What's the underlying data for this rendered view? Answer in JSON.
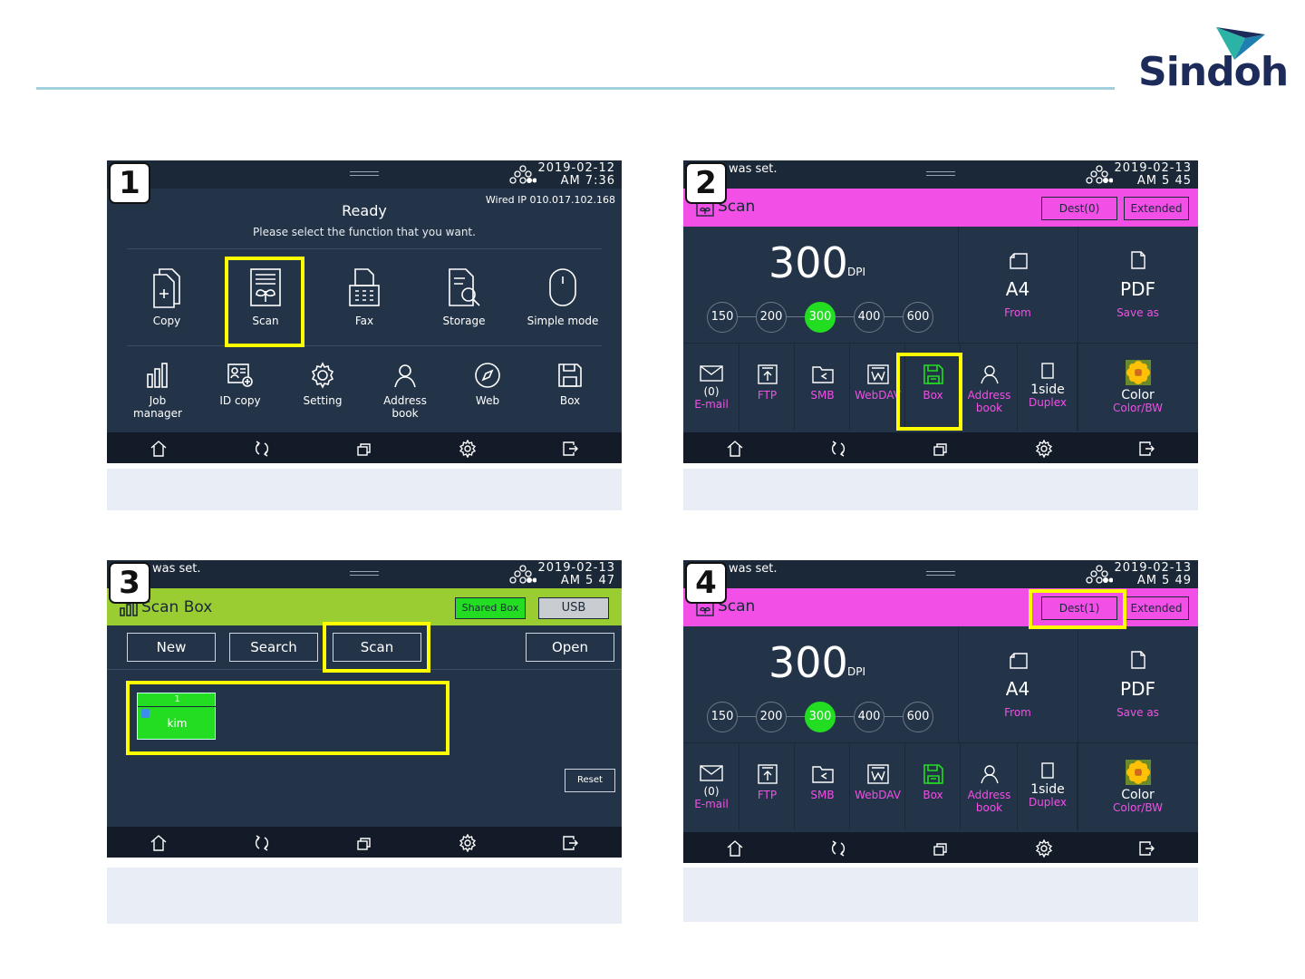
{
  "brand": {
    "name": "Sindoh",
    "text_color": "#1d2b5a"
  },
  "screen1": {
    "badge": "1",
    "date": "2019-02-12",
    "time": "AM 7:36",
    "wired_ip": "Wired IP 010.017.102.168",
    "status": "Ready",
    "instruction": "Please select the function that you want.",
    "functions_row1": [
      "Copy",
      "Scan",
      "Fax",
      "Storage",
      "Simple mode"
    ],
    "functions_row2": [
      "Job\nmanager",
      "ID copy",
      "Setting",
      "Address\nbook",
      "Web",
      "Box"
    ]
  },
  "screen2": {
    "badge": "2",
    "message": "was set.",
    "date": "2019-02-13",
    "time": "AM 5  45",
    "title": "Scan",
    "dest_button": "Dest(0)",
    "extended_button": "Extended",
    "dpi_value": "300",
    "dpi_unit": "DPI",
    "dpi_options": [
      "150",
      "200",
      "300",
      "400",
      "600"
    ],
    "dpi_selected": "300",
    "size": {
      "value": "A4",
      "label": "From"
    },
    "format": {
      "value": "PDF",
      "label": "Save as"
    },
    "email": {
      "count": "(0)",
      "label": "E-mail"
    },
    "destinations": [
      "FTP",
      "SMB",
      "WebDAV",
      "Box"
    ],
    "address_book": "Address\nbook",
    "side": {
      "value": "1side",
      "label": "Duplex"
    },
    "color": {
      "value": "Color",
      "label": "Color/BW"
    }
  },
  "screen3": {
    "badge": "3",
    "message": "was set.",
    "date": "2019-02-13",
    "time": "AM 5  47",
    "title": "Scan Box",
    "shared_box_button": "Shared Box",
    "usb_button": "USB",
    "actions": [
      "New",
      "Search",
      "Scan",
      "Open"
    ],
    "box_number": "1",
    "box_name": "kim",
    "reset_button": "Reset"
  },
  "screen4": {
    "badge": "4",
    "message": "was set.",
    "date": "2019-02-13",
    "time": "AM 5  49",
    "title": "Scan",
    "dest_button": "Dest(1)",
    "extended_button": "Extended",
    "dpi_value": "300",
    "dpi_unit": "DPI",
    "dpi_options": [
      "150",
      "200",
      "300",
      "400",
      "600"
    ],
    "dpi_selected": "300",
    "size": {
      "value": "A4",
      "label": "From"
    },
    "format": {
      "value": "PDF",
      "label": "Save as"
    },
    "email": {
      "count": "(0)",
      "label": "E-mail"
    },
    "destinations": [
      "FTP",
      "SMB",
      "WebDAV",
      "Box"
    ],
    "address_book": "Address\nbook",
    "side": {
      "value": "1side",
      "label": "Duplex"
    },
    "color": {
      "value": "Color",
      "label": "Color/BW"
    }
  },
  "colors": {
    "screen_bg": "#243448",
    "scan_header": "#f24fe6",
    "box_header": "#9acd32",
    "selected_green": "#22dd22",
    "highlight": "#ffff00",
    "caption_bg": "#e9edf5"
  },
  "icons": {
    "navbar": [
      "home-icon",
      "reset-icon",
      "multi-window-icon",
      "settings-icon",
      "logout-icon"
    ]
  }
}
